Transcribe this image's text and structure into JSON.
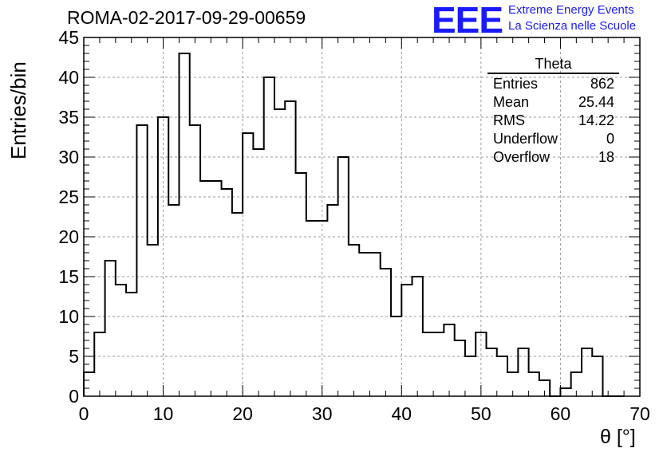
{
  "header": {
    "run_title": "ROMA-02-2017-09-29-00659",
    "logo_mark": "EEE",
    "logo_line1": "Extreme Energy Events",
    "logo_line2": "La Scienza nelle Scuole"
  },
  "colors": {
    "logo": "#1a1aff",
    "histogram": "#000000",
    "grid": "#9a9a9a"
  },
  "stats": {
    "title": "Theta",
    "rows": [
      {
        "label": "Entries",
        "value": "862"
      },
      {
        "label": "Mean",
        "value": "25.44"
      },
      {
        "label": "RMS",
        "value": "14.22"
      },
      {
        "label": "Underflow",
        "value": "0"
      },
      {
        "label": "Overflow",
        "value": "18"
      }
    ]
  },
  "chart_data": {
    "type": "histogram",
    "title": "ROMA-02-2017-09-29-00659",
    "xlabel": "θ [°]",
    "ylabel": "Entries/bin",
    "xlim": [
      0,
      70
    ],
    "ylim": [
      0,
      45
    ],
    "bin_width": 1.33,
    "x_ticks": [
      0,
      10,
      20,
      30,
      40,
      50,
      60,
      70
    ],
    "y_ticks": [
      0,
      5,
      10,
      15,
      20,
      25,
      30,
      35,
      40,
      45
    ],
    "grid": true,
    "bin_edges": [
      0,
      1.33,
      2.67,
      4,
      5.33,
      6.67,
      8,
      9.33,
      10.67,
      12,
      13.33,
      14.67,
      16,
      17.33,
      18.67,
      20,
      21.33,
      22.67,
      24,
      25.33,
      26.67,
      28,
      29.33,
      30.67,
      32,
      33.33,
      34.67,
      36,
      37.33,
      38.67,
      40,
      41.33,
      42.67,
      44,
      45.33,
      46.67,
      48,
      49.33,
      50.67,
      52,
      53.33,
      54.67,
      56,
      57.33,
      58.67,
      60,
      61.33,
      62.67,
      64,
      65.33,
      66.67,
      68
    ],
    "values": [
      3,
      8,
      17,
      14,
      13,
      34,
      19,
      35,
      24,
      43,
      34,
      27,
      27,
      26,
      23,
      33,
      31,
      40,
      36,
      37,
      28,
      22,
      22,
      24,
      30,
      19,
      18,
      18,
      16,
      10,
      14,
      15,
      8,
      8,
      9,
      7,
      5,
      8,
      6,
      5,
      3,
      6,
      3,
      2,
      0,
      1,
      3,
      6,
      5,
      0,
      0
    ]
  }
}
